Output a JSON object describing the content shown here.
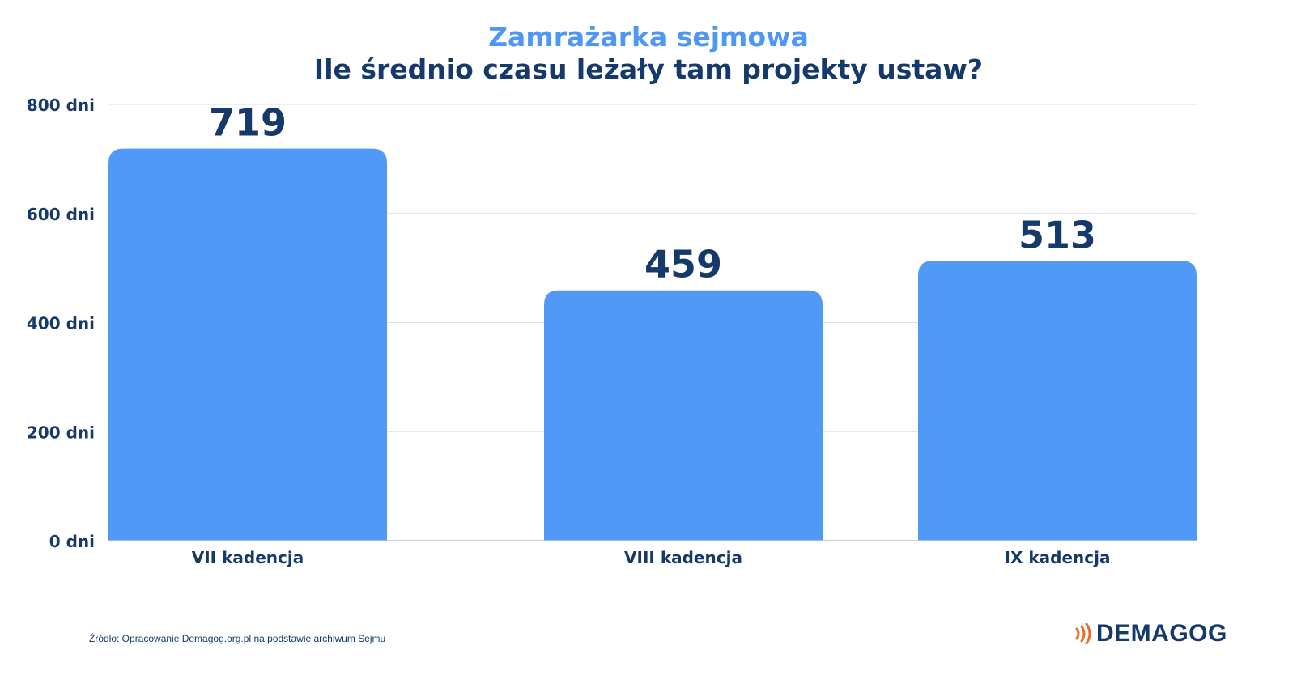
{
  "header": {
    "title": "Zamrażarka sejmowa",
    "subtitle": "Ile średnio czasu leżały tam projekty ustaw?"
  },
  "chart_data": {
    "type": "bar",
    "title": "Zamrażarka sejmowa",
    "subtitle": "Ile średnio czasu leżały tam projekty ustaw?",
    "categories": [
      "VII kadencja",
      "VIII kadencja",
      "IX kadencja"
    ],
    "values": [
      719,
      459,
      513
    ],
    "value_labels": [
      "719",
      "459",
      "513"
    ],
    "ylim": [
      0,
      800
    ],
    "yticks": [
      0,
      200,
      400,
      600,
      800
    ],
    "ytick_labels": [
      "0 dni",
      "200 dni",
      "400 dni",
      "600 dni",
      "800 dni"
    ],
    "xlabel": "",
    "ylabel": "",
    "grid": true,
    "legend": "none",
    "colors": {
      "bar": "#5199f7",
      "value_label": "#14396a",
      "axis_text": "#14396a",
      "grid": "#d8e0ec"
    }
  },
  "footer": {
    "source": "Źródło: Opracowanie Demagog.org.pl na podstawie archiwum Sejmu",
    "logo_text": "DEMAGOG",
    "logo_accent": "#ee6b2d"
  }
}
